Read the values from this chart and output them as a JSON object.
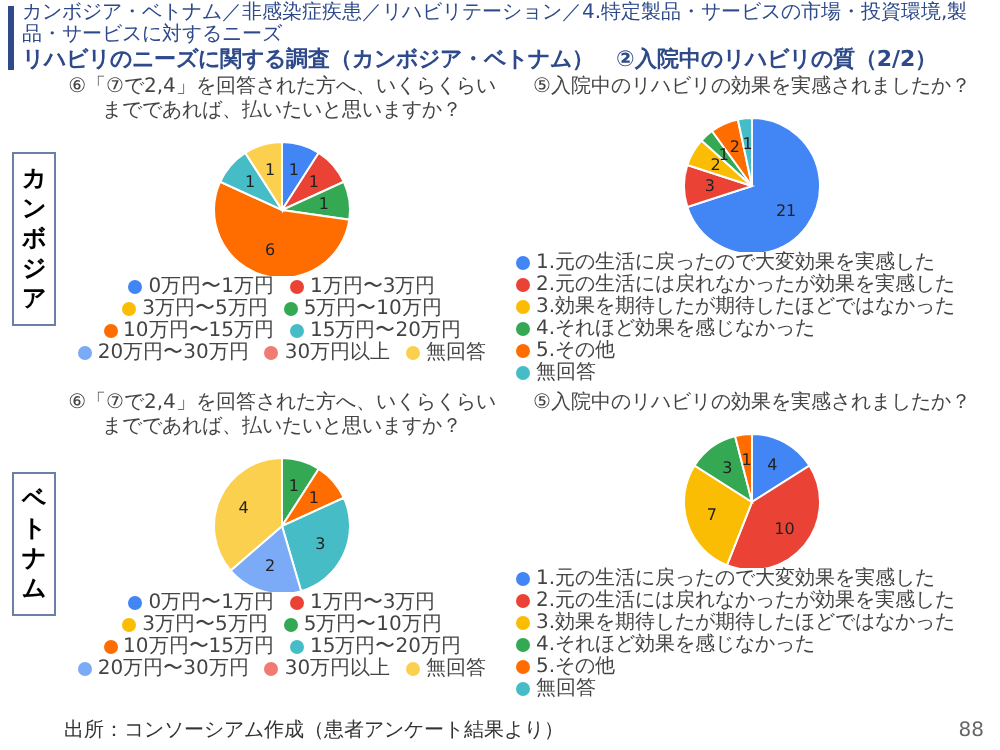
{
  "chart_data": [
    {
      "type": "pie",
      "title": "⑥「⑦で2,4」を回答された方へ、いくらくらいまでであれば、払いたいと思いますか？",
      "categories": [
        "0万円〜1万円",
        "1万円〜3万円",
        "3万円〜5万円",
        "5万円〜10万円",
        "10万円〜15万円",
        "15万円〜20万円",
        "20万円〜30万円",
        "30万円以上",
        "無回答"
      ],
      "values": [
        1,
        1,
        0,
        1,
        6,
        1,
        0,
        0,
        1
      ],
      "colors": [
        "#4285f4",
        "#ea4335",
        "#fbbc04",
        "#34a853",
        "#ff6d01",
        "#46bdc6",
        "#7baaf7",
        "#f07b72",
        "#fcd04f"
      ],
      "data_labels": true,
      "legend": "bottom",
      "annotations": [
        "カンボジア・ベトナム／非感染症疾患／リハビリテーション／4.特定製品・サービスの市場・投資環境,製品・サービスに対するニーズ",
        "リハビリのニーズに関する調査（カンボジア・ベトナム）　②入院中のリハビリの質（2/2）",
        "カンボジア"
      ]
    },
    {
      "type": "pie",
      "title": "⑤入院中のリハビリの効果を実感されましたか？",
      "categories": [
        "1.元の生活に戻ったので大変効果を実感した",
        "2.元の生活には戻れなかったが効果を実感した",
        "3.効果を期待したが期待したほどではなかった",
        "4.それほど効果を感じなかった",
        "5.その他",
        "無回答"
      ],
      "values": [
        21,
        3,
        2,
        1,
        2,
        1
      ],
      "colors": [
        "#4285f4",
        "#ea4335",
        "#fbbc04",
        "#34a853",
        "#ff6d01",
        "#46bdc6"
      ],
      "data_labels": true,
      "legend": "bottom"
    },
    {
      "type": "pie",
      "title": "⑥「⑦で2,4」を回答された方へ、いくらくらいまでであれば、払いたいと思いますか？",
      "categories": [
        "0万円〜1万円",
        "1万円〜3万円",
        "3万円〜5万円",
        "5万円〜10万円",
        "10万円〜15万円",
        "15万円〜20万円",
        "20万円〜30万円",
        "30万円以上",
        "無回答"
      ],
      "values": [
        0,
        0,
        0,
        1,
        1,
        3,
        2,
        0,
        4
      ],
      "colors": [
        "#4285f4",
        "#ea4335",
        "#fbbc04",
        "#34a853",
        "#ff6d01",
        "#46bdc6",
        "#7baaf7",
        "#f07b72",
        "#fcd04f"
      ],
      "data_labels": true,
      "legend": "bottom",
      "annotations": [
        "ベトナム"
      ]
    },
    {
      "type": "pie",
      "title": "⑤入院中のリハビリの効果を実感されましたか？",
      "categories": [
        "1.元の生活に戻ったので大変効果を実感した",
        "2.元の生活には戻れなかったが効果を実感した",
        "3.効果を期待したが期待したほどではなかった",
        "4.それほど効果を感じなかった",
        "5.その他",
        "無回答"
      ],
      "values": [
        4,
        10,
        7,
        3,
        1,
        0
      ],
      "colors": [
        "#4285f4",
        "#ea4335",
        "#fbbc04",
        "#34a853",
        "#ff6d01",
        "#46bdc6"
      ],
      "data_labels": true,
      "legend": "bottom",
      "annotations": [
        "出所：コンソーシアム作成（患者アンケート結果より）",
        "88"
      ]
    }
  ]
}
